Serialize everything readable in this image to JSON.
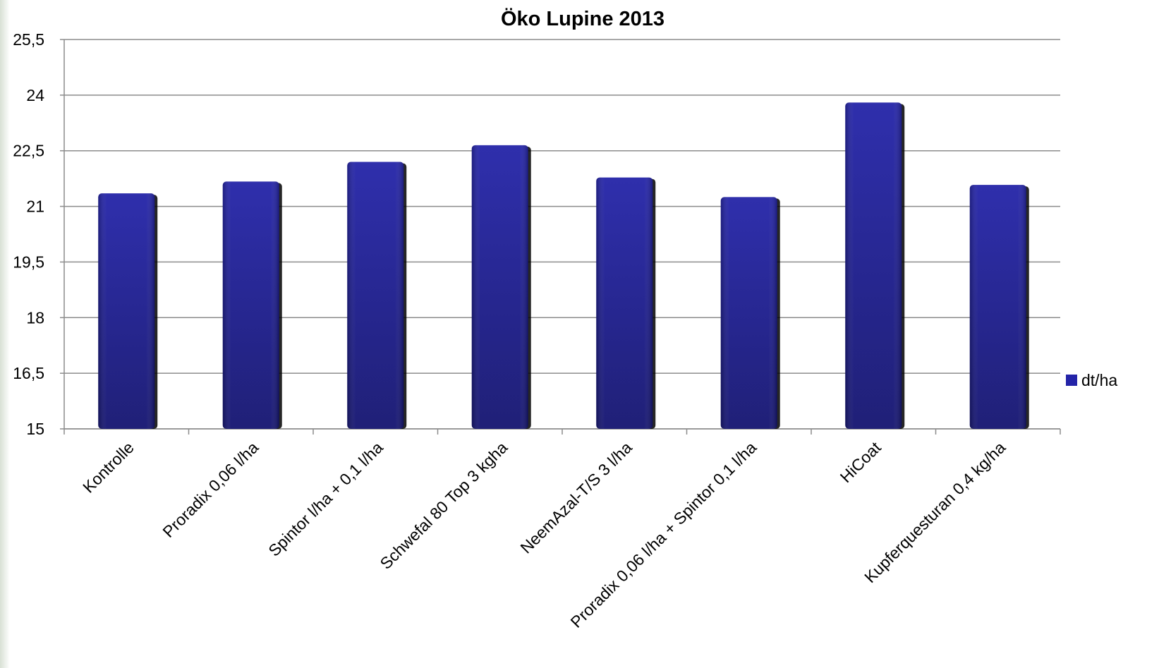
{
  "chart_data": {
    "type": "bar",
    "title": "Öko Lupine 2013",
    "xlabel": "",
    "ylabel": "",
    "categories": [
      "Kontrolle",
      "Proradix 0,06 l/ha",
      "Spintor  l/ha + 0,1 l/ha",
      "Schwefal 80 Top 3 kgha",
      "NeemAzal-T/S 3 l/ha",
      "Proradix 0,06 l/ha + Spintor 0,1 l/ha",
      "HiCoat",
      "Kupferquesturan 0,4 kg/ha"
    ],
    "series": [
      {
        "name": "dt/ha",
        "values": [
          21.35,
          21.67,
          22.2,
          22.65,
          21.78,
          21.25,
          23.8,
          21.58
        ]
      }
    ],
    "ylim": [
      15,
      25.5
    ],
    "yticks": [
      "15",
      "16,5",
      "18",
      "19,5",
      "21",
      "22,5",
      "24",
      "25,5"
    ],
    "ytick_values": [
      15,
      16.5,
      18,
      19.5,
      21,
      22.5,
      24,
      25.5
    ],
    "grid": true,
    "legend_position": "right",
    "bar_color": "#2424a8",
    "bar_color_dark": "#141470"
  }
}
